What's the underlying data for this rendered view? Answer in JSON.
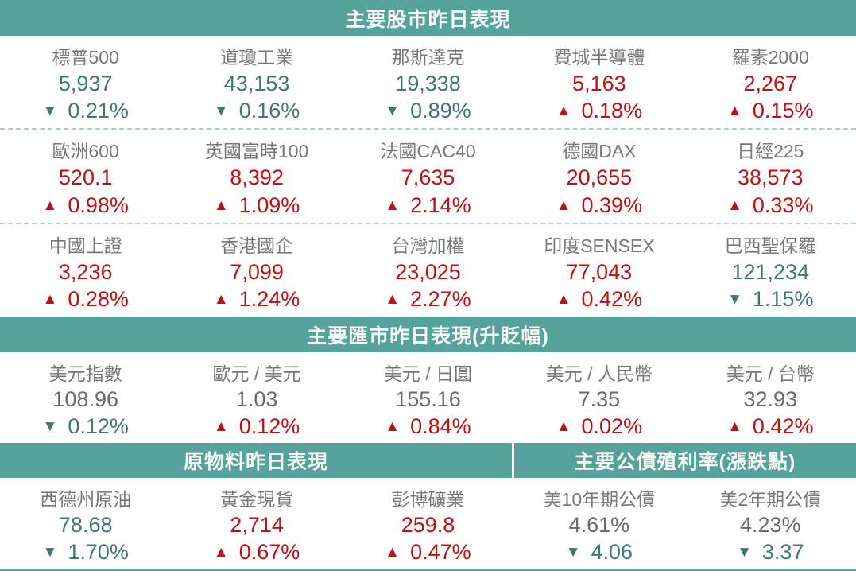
{
  "colors": {
    "header_teal": "#55a39b",
    "header_text": "#f7fbfa",
    "up_red": "#c01111",
    "down_teal": "#3e7a74",
    "label_gray": "#76797c",
    "neutral_value_gray": "#696c6e",
    "dashed_separator": "#a6ceca"
  },
  "icons": {
    "up": "▲",
    "down": "▼"
  },
  "sections": {
    "stocks": {
      "title": "主要股市昨日表現",
      "rows": [
        [
          {
            "label": "標普500",
            "value": "5,937",
            "change": "0.21%",
            "direction": "down"
          },
          {
            "label": "道瓊工業",
            "value": "43,153",
            "change": "0.16%",
            "direction": "down"
          },
          {
            "label": "那斯達克",
            "value": "19,338",
            "change": "0.89%",
            "direction": "down"
          },
          {
            "label": "費城半導體",
            "value": "5,163",
            "change": "0.18%",
            "direction": "up"
          },
          {
            "label": "羅素2000",
            "value": "2,267",
            "change": "0.15%",
            "direction": "up"
          }
        ],
        [
          {
            "label": "歐洲600",
            "value": "520.1",
            "change": "0.98%",
            "direction": "up"
          },
          {
            "label": "英國富時100",
            "value": "8,392",
            "change": "1.09%",
            "direction": "up"
          },
          {
            "label": "法國CAC40",
            "value": "7,635",
            "change": "2.14%",
            "direction": "up"
          },
          {
            "label": "德國DAX",
            "value": "20,655",
            "change": "0.39%",
            "direction": "up"
          },
          {
            "label": "日經225",
            "value": "38,573",
            "change": "0.33%",
            "direction": "up"
          }
        ],
        [
          {
            "label": "中國上證",
            "value": "3,236",
            "change": "0.28%",
            "direction": "up"
          },
          {
            "label": "香港國企",
            "value": "7,099",
            "change": "1.24%",
            "direction": "up"
          },
          {
            "label": "台灣加權",
            "value": "23,025",
            "change": "2.27%",
            "direction": "up"
          },
          {
            "label": "印度SENSEX",
            "value": "77,043",
            "change": "0.42%",
            "direction": "up"
          },
          {
            "label": "巴西聖保羅",
            "value": "121,234",
            "change": "1.15%",
            "direction": "down"
          }
        ]
      ]
    },
    "fx": {
      "title": "主要匯市昨日表現(升貶幅)",
      "rows": [
        [
          {
            "label": "美元指數",
            "value": "108.96",
            "change": "0.12%",
            "direction": "down",
            "value_neutral": true
          },
          {
            "label": "歐元 / 美元",
            "value": "1.03",
            "change": "0.12%",
            "direction": "up",
            "value_neutral": true
          },
          {
            "label": "美元 / 日圓",
            "value": "155.16",
            "change": "0.84%",
            "direction": "up",
            "value_neutral": true
          },
          {
            "label": "美元 / 人民幣",
            "value": "7.35",
            "change": "0.02%",
            "direction": "up",
            "value_neutral": true
          },
          {
            "label": "美元 / 台幣",
            "value": "32.93",
            "change": "0.42%",
            "direction": "up",
            "value_neutral": true
          }
        ]
      ]
    },
    "bottom": {
      "left_title": "原物料昨日表現",
      "right_title": "主要公債殖利率(漲跌點)",
      "rows": [
        [
          {
            "label": "西德州原油",
            "value": "78.68",
            "change": "1.70%",
            "direction": "down"
          },
          {
            "label": "黃金現貨",
            "value": "2,714",
            "change": "0.67%",
            "direction": "up"
          },
          {
            "label": "彭博礦業",
            "value": "259.8",
            "change": "0.47%",
            "direction": "up"
          },
          {
            "label": "美10年期公債",
            "value": "4.61%",
            "change": "4.06",
            "direction": "down",
            "value_neutral": true
          },
          {
            "label": "美2年期公債",
            "value": "4.23%",
            "change": "3.37",
            "direction": "down",
            "value_neutral": true
          }
        ]
      ]
    }
  },
  "chart_data": {
    "type": "table",
    "tables": [
      {
        "title": "主要股市昨日表現",
        "rows": [
          [
            "標普500",
            "5,937",
            "-0.21%"
          ],
          [
            "道瓊工業",
            "43,153",
            "-0.16%"
          ],
          [
            "那斯達克",
            "19,338",
            "-0.89%"
          ],
          [
            "費城半導體",
            "5,163",
            "+0.18%"
          ],
          [
            "羅素2000",
            "2,267",
            "+0.15%"
          ],
          [
            "歐洲600",
            "520.1",
            "+0.98%"
          ],
          [
            "英國富時100",
            "8,392",
            "+1.09%"
          ],
          [
            "法國CAC40",
            "7,635",
            "+2.14%"
          ],
          [
            "德國DAX",
            "20,655",
            "+0.39%"
          ],
          [
            "日經225",
            "38,573",
            "+0.33%"
          ],
          [
            "中國上證",
            "3,236",
            "+0.28%"
          ],
          [
            "香港國企",
            "7,099",
            "+1.24%"
          ],
          [
            "台灣加權",
            "23,025",
            "+2.27%"
          ],
          [
            "印度SENSEX",
            "77,043",
            "+0.42%"
          ],
          [
            "巴西聖保羅",
            "121,234",
            "-1.15%"
          ]
        ]
      },
      {
        "title": "主要匯市昨日表現(升貶幅)",
        "rows": [
          [
            "美元指數",
            "108.96",
            "-0.12%"
          ],
          [
            "歐元 / 美元",
            "1.03",
            "+0.12%"
          ],
          [
            "美元 / 日圓",
            "155.16",
            "+0.84%"
          ],
          [
            "美元 / 人民幣",
            "7.35",
            "+0.02%"
          ],
          [
            "美元 / 台幣",
            "32.93",
            "+0.42%"
          ]
        ]
      },
      {
        "title": "原物料昨日表現",
        "rows": [
          [
            "西德州原油",
            "78.68",
            "-1.70%"
          ],
          [
            "黃金現貨",
            "2,714",
            "+0.67%"
          ],
          [
            "彭博礦業",
            "259.8",
            "+0.47%"
          ]
        ]
      },
      {
        "title": "主要公債殖利率(漲跌點)",
        "rows": [
          [
            "美10年期公債",
            "4.61%",
            "-4.06"
          ],
          [
            "美2年期公債",
            "4.23%",
            "-3.37"
          ]
        ]
      }
    ]
  }
}
